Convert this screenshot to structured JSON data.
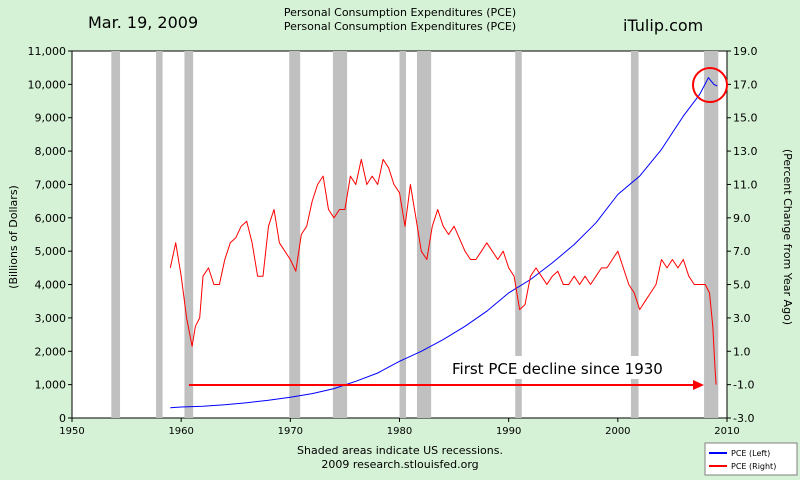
{
  "header": {
    "date": "Mar. 19, 2009",
    "title_line1": "Personal Consumption Expenditures (PCE)",
    "title_line2": "Personal Consumption Expenditures (PCE)",
    "brand": "iTulip.com"
  },
  "footer": {
    "line1": "Shaded areas indicate US recessions.",
    "line2": "2009 research.stlouisfed.org"
  },
  "annotation": {
    "text": "First PCE decline since 1930",
    "arrow_color": "#ff0000",
    "circle_color": "#ff0000"
  },
  "colors": {
    "background": "#d6f2d6",
    "plot_background": "#ffffff",
    "recession": "#c0c0c0",
    "pce_left": "#0000ff",
    "pce_right": "#ff0000"
  },
  "chart_data": {
    "type": "line",
    "xlabel": "",
    "xlim": [
      1950,
      2010
    ],
    "x_ticks": [
      "1950",
      "1960",
      "1970",
      "1980",
      "1990",
      "2000",
      "2010"
    ],
    "y_left": {
      "label": "(Billions of Dollars)",
      "lim": [
        0,
        11000
      ],
      "ticks": [
        "0",
        "1,000",
        "2,000",
        "3,000",
        "4,000",
        "5,000",
        "6,000",
        "7,000",
        "8,000",
        "9,000",
        "10,000",
        "11,000"
      ]
    },
    "y_right": {
      "label": "(Percent Change from Year Ago)",
      "lim": [
        -3.0,
        19.0
      ],
      "ticks": [
        "-3.0",
        "-1.0",
        "1.0",
        "3.0",
        "5.0",
        "7.0",
        "9.0",
        "11.0",
        "13.0",
        "15.0",
        "17.0",
        "19.0"
      ]
    },
    "recessions": [
      [
        1953.6,
        1954.4
      ],
      [
        1957.7,
        1958.3
      ],
      [
        1960.3,
        1961.1
      ],
      [
        1969.9,
        1970.9
      ],
      [
        1973.9,
        1975.2
      ],
      [
        1980.0,
        1980.6
      ],
      [
        1981.6,
        1982.9
      ],
      [
        1990.6,
        1991.2
      ],
      [
        2001.2,
        2001.9
      ],
      [
        2007.9,
        2009.2
      ]
    ],
    "legend_position": "bottom-right",
    "series": [
      {
        "name": "PCE (Left)",
        "axis": "left",
        "color": "#0000ff",
        "points": [
          [
            1959.0,
            310
          ],
          [
            1960.0,
            330
          ],
          [
            1962.0,
            355
          ],
          [
            1964.0,
            400
          ],
          [
            1966.0,
            460
          ],
          [
            1968.0,
            530
          ],
          [
            1970.0,
            620
          ],
          [
            1972.0,
            730
          ],
          [
            1974.0,
            880
          ],
          [
            1976.0,
            1100
          ],
          [
            1978.0,
            1350
          ],
          [
            1980.0,
            1700
          ],
          [
            1982.0,
            2000
          ],
          [
            1984.0,
            2350
          ],
          [
            1986.0,
            2750
          ],
          [
            1988.0,
            3200
          ],
          [
            1990.0,
            3750
          ],
          [
            1992.0,
            4150
          ],
          [
            1994.0,
            4650
          ],
          [
            1996.0,
            5200
          ],
          [
            1998.0,
            5850
          ],
          [
            2000.0,
            6700
          ],
          [
            2002.0,
            7250
          ],
          [
            2004.0,
            8050
          ],
          [
            2006.0,
            9050
          ],
          [
            2007.5,
            9700
          ],
          [
            2008.3,
            10200
          ],
          [
            2008.8,
            10000
          ],
          [
            2009.1,
            9950
          ]
        ]
      },
      {
        "name": "PCE (Right)",
        "axis": "right",
        "color": "#ff0000",
        "points": [
          [
            1959.0,
            6.0
          ],
          [
            1959.5,
            7.5
          ],
          [
            1960.0,
            5.5
          ],
          [
            1960.5,
            3.0
          ],
          [
            1961.0,
            1.3
          ],
          [
            1961.3,
            2.5
          ],
          [
            1961.7,
            3.0
          ],
          [
            1962.0,
            5.5
          ],
          [
            1962.5,
            6.0
          ],
          [
            1963.0,
            5.0
          ],
          [
            1963.5,
            5.0
          ],
          [
            1964.0,
            6.5
          ],
          [
            1964.5,
            7.5
          ],
          [
            1965.0,
            7.8
          ],
          [
            1965.5,
            8.5
          ],
          [
            1966.0,
            8.8
          ],
          [
            1966.5,
            7.5
          ],
          [
            1967.0,
            5.5
          ],
          [
            1967.5,
            5.5
          ],
          [
            1968.0,
            8.5
          ],
          [
            1968.5,
            9.5
          ],
          [
            1969.0,
            7.5
          ],
          [
            1969.5,
            7.0
          ],
          [
            1970.0,
            6.5
          ],
          [
            1970.5,
            5.8
          ],
          [
            1971.0,
            8.0
          ],
          [
            1971.5,
            8.5
          ],
          [
            1972.0,
            10.0
          ],
          [
            1972.5,
            11.0
          ],
          [
            1973.0,
            11.5
          ],
          [
            1973.5,
            9.5
          ],
          [
            1974.0,
            9.0
          ],
          [
            1974.5,
            9.5
          ],
          [
            1975.0,
            9.5
          ],
          [
            1975.5,
            11.5
          ],
          [
            1976.0,
            11.0
          ],
          [
            1976.5,
            12.5
          ],
          [
            1977.0,
            11.0
          ],
          [
            1977.5,
            11.5
          ],
          [
            1978.0,
            11.0
          ],
          [
            1978.5,
            12.5
          ],
          [
            1979.0,
            12.0
          ],
          [
            1979.5,
            11.0
          ],
          [
            1980.0,
            10.5
          ],
          [
            1980.5,
            8.5
          ],
          [
            1981.0,
            11.0
          ],
          [
            1981.5,
            9.0
          ],
          [
            1982.0,
            7.0
          ],
          [
            1982.5,
            6.5
          ],
          [
            1983.0,
            8.5
          ],
          [
            1983.5,
            9.5
          ],
          [
            1984.0,
            8.5
          ],
          [
            1984.5,
            8.0
          ],
          [
            1985.0,
            8.5
          ],
          [
            1986.0,
            7.0
          ],
          [
            1986.5,
            6.5
          ],
          [
            1987.0,
            6.5
          ],
          [
            1987.5,
            7.0
          ],
          [
            1988.0,
            7.5
          ],
          [
            1988.5,
            7.0
          ],
          [
            1989.0,
            6.5
          ],
          [
            1989.5,
            7.0
          ],
          [
            1990.0,
            6.0
          ],
          [
            1990.5,
            5.5
          ],
          [
            1991.0,
            3.5
          ],
          [
            1991.5,
            3.8
          ],
          [
            1992.0,
            5.5
          ],
          [
            1992.5,
            6.0
          ],
          [
            1993.0,
            5.5
          ],
          [
            1993.5,
            5.0
          ],
          [
            1994.0,
            5.5
          ],
          [
            1994.5,
            5.8
          ],
          [
            1995.0,
            5.0
          ],
          [
            1995.5,
            5.0
          ],
          [
            1996.0,
            5.5
          ],
          [
            1996.5,
            5.0
          ],
          [
            1997.0,
            5.5
          ],
          [
            1997.5,
            5.0
          ],
          [
            1998.0,
            5.5
          ],
          [
            1998.5,
            6.0
          ],
          [
            1999.0,
            6.0
          ],
          [
            1999.5,
            6.5
          ],
          [
            2000.0,
            7.0
          ],
          [
            2000.5,
            6.0
          ],
          [
            2001.0,
            5.0
          ],
          [
            2001.5,
            4.5
          ],
          [
            2002.0,
            3.5
          ],
          [
            2002.5,
            4.0
          ],
          [
            2003.0,
            4.5
          ],
          [
            2003.5,
            5.0
          ],
          [
            2004.0,
            6.5
          ],
          [
            2004.5,
            6.0
          ],
          [
            2005.0,
            6.5
          ],
          [
            2005.5,
            6.0
          ],
          [
            2006.0,
            6.5
          ],
          [
            2006.5,
            5.5
          ],
          [
            2007.0,
            5.0
          ],
          [
            2007.5,
            5.0
          ],
          [
            2008.0,
            5.0
          ],
          [
            2008.4,
            4.5
          ],
          [
            2008.7,
            2.5
          ],
          [
            2008.9,
            0.0
          ],
          [
            2009.0,
            -1.0
          ]
        ]
      }
    ]
  }
}
